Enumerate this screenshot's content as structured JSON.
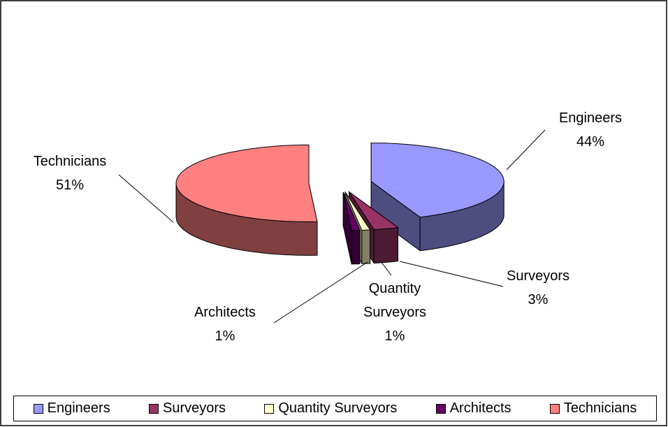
{
  "chart_data": {
    "type": "pie3d",
    "categories": [
      "Engineers",
      "Surveyors",
      "Quantity Surveyors",
      "Architects",
      "Technicians"
    ],
    "values": [
      44,
      3,
      1,
      1,
      51
    ],
    "value_labels": [
      "44%",
      "3%",
      "1%",
      "1%",
      "51%"
    ],
    "colors": [
      "#9999ff",
      "#993366",
      "#ffffcc",
      "#660066",
      "#ff8080"
    ],
    "legend": "bottom"
  }
}
